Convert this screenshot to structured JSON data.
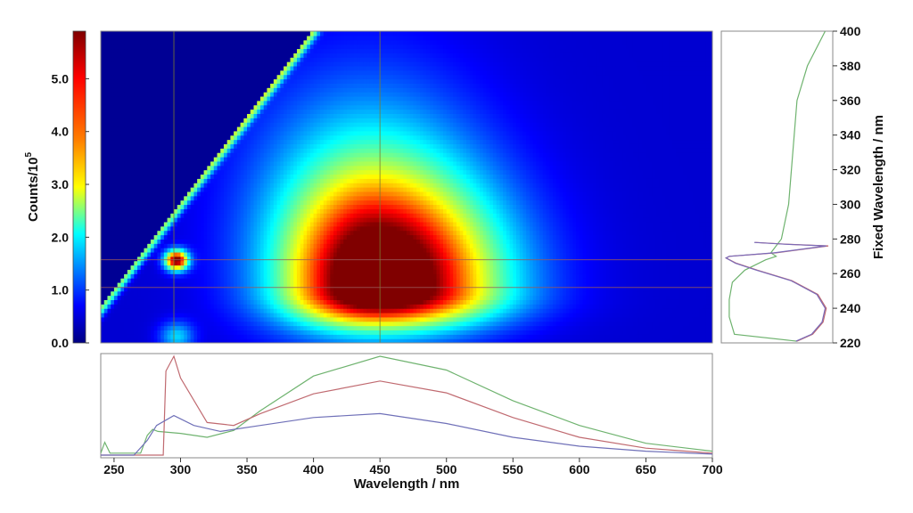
{
  "chart_data": [
    {
      "type": "heatmap",
      "title": "",
      "xlabel": "Wavelength / nm",
      "ylabel": "Fixed Wavelength / nm",
      "xlim": [
        240,
        700
      ],
      "ylim": [
        220,
        400
      ],
      "x_ticks": [
        "250",
        "300",
        "350",
        "400",
        "450",
        "500",
        "550",
        "600",
        "650",
        "700"
      ],
      "y_ticks": [
        "220",
        "240",
        "260",
        "280",
        "300",
        "320",
        "340",
        "360",
        "380",
        "400"
      ],
      "colorbar": {
        "label": "Counts/10",
        "label_sup": "5",
        "range": [
          0,
          5.9
        ],
        "ticks": [
          "0.0",
          "1.0",
          "2.0",
          "3.0",
          "4.0",
          "5.0"
        ],
        "colormap": "jet"
      },
      "peaks": [
        {
          "x": 450,
          "y": 250,
          "z": 5.8
        },
        {
          "x": 297,
          "y": 268,
          "z": 5.6
        }
      ],
      "scatter_diagonal": "x = y",
      "crosshair": {
        "vertical_x": [
          295,
          450
        ],
        "horizontal_y": [
          252,
          268
        ]
      }
    },
    {
      "type": "line",
      "title": "",
      "xlabel": "Wavelength / nm",
      "xlim": [
        240,
        700
      ],
      "series": [
        {
          "color": "#6fb36f",
          "x": [
            240,
            243,
            247,
            270,
            275,
            279,
            283,
            300,
            320,
            340,
            360,
            400,
            450,
            500,
            550,
            600,
            650,
            700
          ],
          "y": [
            0.02,
            0.13,
            0.02,
            0.02,
            0.2,
            0.26,
            0.24,
            0.22,
            0.18,
            0.25,
            0.45,
            0.8,
            1.0,
            0.86,
            0.55,
            0.3,
            0.12,
            0.04
          ]
        },
        {
          "color": "#c06a70",
          "x": [
            240,
            287,
            289,
            295,
            300,
            320,
            340,
            360,
            400,
            450,
            500,
            550,
            600,
            650,
            700
          ],
          "y": [
            0.0,
            0.0,
            0.85,
            1.0,
            0.78,
            0.33,
            0.3,
            0.42,
            0.62,
            0.75,
            0.63,
            0.38,
            0.18,
            0.07,
            0.02
          ]
        },
        {
          "color": "#6f70b8",
          "x": [
            240,
            265,
            275,
            282,
            295,
            310,
            330,
            360,
            400,
            450,
            500,
            550,
            600,
            650,
            700
          ],
          "y": [
            0.0,
            0.0,
            0.15,
            0.3,
            0.4,
            0.3,
            0.24,
            0.3,
            0.38,
            0.42,
            0.32,
            0.18,
            0.09,
            0.04,
            0.01
          ]
        }
      ]
    },
    {
      "type": "line",
      "title": "",
      "ylabel": "Fixed Wavelength / nm",
      "ylim": [
        220,
        400
      ],
      "series": [
        {
          "color": "#6fb36f",
          "y": [
            221,
            225,
            235,
            245,
            255,
            262,
            268,
            270,
            272,
            280,
            300,
            330,
            360,
            380,
            400
          ],
          "x": [
            0.7,
            0.1,
            0.05,
            0.05,
            0.08,
            0.2,
            0.4,
            0.5,
            0.45,
            0.55,
            0.62,
            0.66,
            0.7,
            0.8,
            0.97
          ]
        },
        {
          "color": "#c06a70",
          "y": [
            221,
            225,
            232,
            240,
            248,
            256,
            262,
            266,
            269,
            270,
            272,
            276,
            277,
            278
          ],
          "x": [
            0.7,
            0.85,
            0.95,
            0.98,
            0.9,
            0.65,
            0.32,
            0.12,
            0.02,
            0.05,
            0.5,
            1.0,
            0.6,
            0.3
          ]
        },
        {
          "color": "#7a6ab8",
          "y": [
            221,
            225,
            232,
            240,
            248,
            256,
            262,
            266,
            269,
            270,
            272,
            276,
            277,
            278
          ],
          "x": [
            0.69,
            0.84,
            0.94,
            0.97,
            0.89,
            0.64,
            0.31,
            0.11,
            0.02,
            0.05,
            0.48,
            0.98,
            0.58,
            0.29
          ]
        }
      ]
    }
  ]
}
